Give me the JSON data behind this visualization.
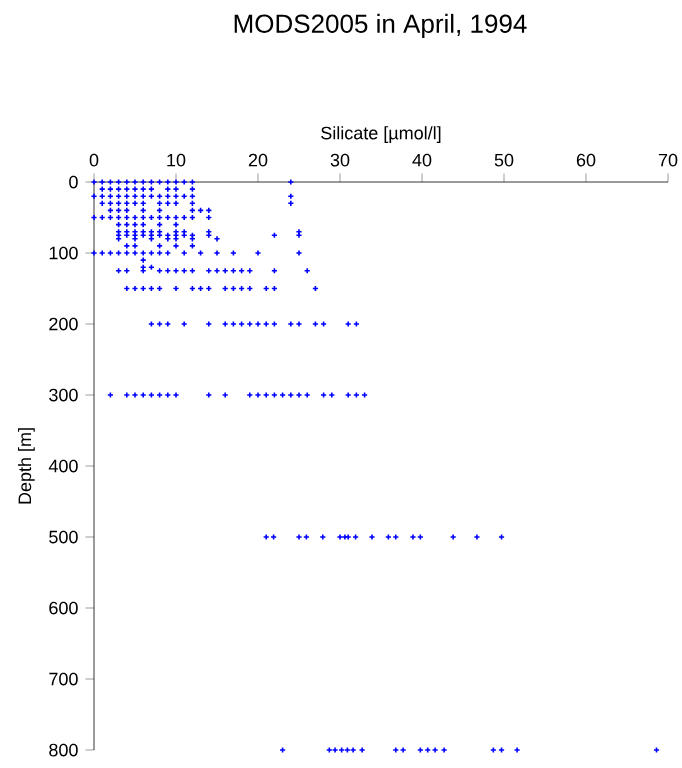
{
  "chart_data": {
    "type": "scatter",
    "title": "MODS2005 in April, 1994",
    "xlabel": "Silicate [µmol/l]",
    "ylabel": "Depth [m]",
    "xlim": [
      0,
      70
    ],
    "xticks": [
      0,
      10,
      20,
      30,
      40,
      50,
      60,
      70
    ],
    "ylim": [
      800,
      0
    ],
    "yticks": [
      0,
      100,
      200,
      300,
      400,
      500,
      600,
      700,
      800
    ],
    "marker": "cross",
    "series": [
      {
        "color": "#0000ff",
        "x": [
          0,
          1,
          2,
          3,
          4,
          5,
          6,
          7,
          8,
          9,
          10,
          11,
          12,
          24,
          1,
          2,
          3,
          4,
          5,
          6,
          7,
          9,
          10,
          12,
          0,
          1,
          2,
          3,
          4,
          5,
          6,
          7,
          8,
          9,
          10,
          11,
          12,
          24,
          1,
          2,
          3,
          4,
          5,
          6,
          8,
          9,
          10,
          12,
          24,
          2,
          3,
          4,
          6,
          8,
          12,
          13,
          14,
          0,
          1,
          2,
          3,
          4,
          5,
          6,
          7,
          8,
          9,
          10,
          11,
          12,
          14,
          3,
          4,
          5,
          6,
          8,
          10,
          3,
          4,
          5,
          6,
          7,
          8,
          10,
          11,
          14,
          25,
          3,
          4,
          5,
          6,
          7,
          8,
          9,
          10,
          11,
          12,
          14,
          22,
          25,
          3,
          5,
          7,
          9,
          10,
          12,
          15,
          4,
          5,
          8,
          10,
          12,
          0,
          1,
          2,
          3,
          4,
          5,
          6,
          7,
          8,
          9,
          11,
          13,
          15,
          17,
          20,
          25,
          6,
          6,
          7,
          3,
          4,
          6,
          8,
          9,
          10,
          11,
          12,
          14,
          15,
          16,
          17,
          18,
          19,
          22,
          26,
          4,
          5,
          6,
          7,
          8,
          10,
          12,
          13,
          14,
          16,
          17,
          18,
          19,
          21,
          22,
          27,
          7,
          8,
          9,
          11,
          14,
          16,
          17,
          18,
          19,
          20,
          21,
          22,
          24,
          25,
          27,
          28,
          31,
          32,
          2,
          4,
          5,
          6,
          7,
          8,
          9,
          10,
          14,
          16,
          19,
          20,
          21,
          22,
          23,
          24,
          25,
          26,
          28,
          29,
          31,
          32,
          33,
          21,
          21.9,
          25,
          25.9,
          27.9,
          30,
          30.6,
          31,
          31.9,
          33.9,
          35.9,
          36.8,
          38.9,
          39.8,
          43.8,
          46.7,
          49.7,
          23,
          28.7,
          29.4,
          30.2,
          30.9,
          31.6,
          32.7,
          36.8,
          37.7,
          39.8,
          40.7,
          41.6,
          42.7,
          48.7,
          49.7,
          51.6,
          68.6
        ],
        "values": [
          0,
          0,
          0,
          0,
          0,
          0,
          0,
          0,
          0,
          0,
          0,
          0,
          0,
          0,
          10,
          10,
          10,
          10,
          10,
          10,
          10,
          10,
          10,
          10,
          20,
          20,
          20,
          20,
          20,
          20,
          20,
          20,
          20,
          20,
          20,
          20,
          20,
          20,
          30,
          30,
          30,
          30,
          30,
          30,
          30,
          30,
          30,
          30,
          30,
          40,
          40,
          40,
          40,
          40,
          40,
          40,
          40,
          50,
          50,
          50,
          50,
          50,
          50,
          50,
          50,
          50,
          50,
          50,
          50,
          50,
          50,
          60,
          60,
          60,
          60,
          60,
          60,
          70,
          70,
          70,
          70,
          70,
          70,
          70,
          70,
          70,
          70,
          75,
          75,
          75,
          75,
          75,
          75,
          75,
          75,
          75,
          75,
          75,
          75,
          75,
          80,
          80,
          80,
          80,
          80,
          80,
          80,
          90,
          90,
          90,
          90,
          90,
          100,
          100,
          100,
          100,
          100,
          100,
          100,
          100,
          100,
          100,
          100,
          100,
          100,
          100,
          100,
          100,
          110,
          120,
          120,
          125,
          125,
          125,
          125,
          125,
          125,
          125,
          125,
          125,
          125,
          125,
          125,
          125,
          125,
          125,
          125,
          150,
          150,
          150,
          150,
          150,
          150,
          150,
          150,
          150,
          150,
          150,
          150,
          150,
          150,
          150,
          150,
          200,
          200,
          200,
          200,
          200,
          200,
          200,
          200,
          200,
          200,
          200,
          200,
          200,
          200,
          200,
          200,
          200,
          200,
          300,
          300,
          300,
          300,
          300,
          300,
          300,
          300,
          300,
          300,
          300,
          300,
          300,
          300,
          300,
          300,
          300,
          300,
          300,
          300,
          300,
          300,
          300,
          500,
          500,
          500,
          500,
          500,
          500,
          500,
          500,
          500,
          500,
          500,
          500,
          500,
          500,
          500,
          500,
          500,
          800,
          800,
          800,
          800,
          800,
          800,
          800,
          800,
          800,
          800,
          800,
          800,
          800,
          800,
          800,
          800,
          800
        ]
      }
    ]
  }
}
